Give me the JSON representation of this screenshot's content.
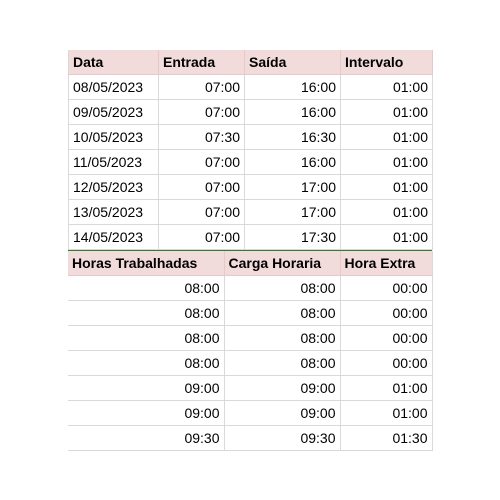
{
  "table1": {
    "headers": [
      "Data",
      "Entrada",
      "Saída",
      "Intervalo"
    ],
    "rows": [
      [
        "08/05/2023",
        "07:00",
        "16:00",
        "01:00"
      ],
      [
        "09/05/2023",
        "07:00",
        "16:00",
        "01:00"
      ],
      [
        "10/05/2023",
        "07:30",
        "16:30",
        "01:00"
      ],
      [
        "11/05/2023",
        "07:00",
        "16:00",
        "01:00"
      ],
      [
        "12/05/2023",
        "07:00",
        "17:00",
        "01:00"
      ],
      [
        "13/05/2023",
        "07:00",
        "17:00",
        "01:00"
      ],
      [
        "14/05/2023",
        "07:00",
        "17:30",
        "01:00"
      ]
    ]
  },
  "table2": {
    "headers": [
      "Horas Trabalhadas",
      "Carga Horaria",
      "Hora Extra"
    ],
    "rows": [
      [
        "08:00",
        "08:00",
        "00:00"
      ],
      [
        "08:00",
        "08:00",
        "00:00"
      ],
      [
        "08:00",
        "08:00",
        "00:00"
      ],
      [
        "08:00",
        "08:00",
        "00:00"
      ],
      [
        "09:00",
        "09:00",
        "01:00"
      ],
      [
        "09:00",
        "09:00",
        "01:00"
      ],
      [
        "09:30",
        "09:30",
        "01:30"
      ]
    ]
  },
  "colors": {
    "header_bg": "#f2dcdb",
    "grid": "#d9d9d9",
    "divider": "#2e7d32"
  }
}
